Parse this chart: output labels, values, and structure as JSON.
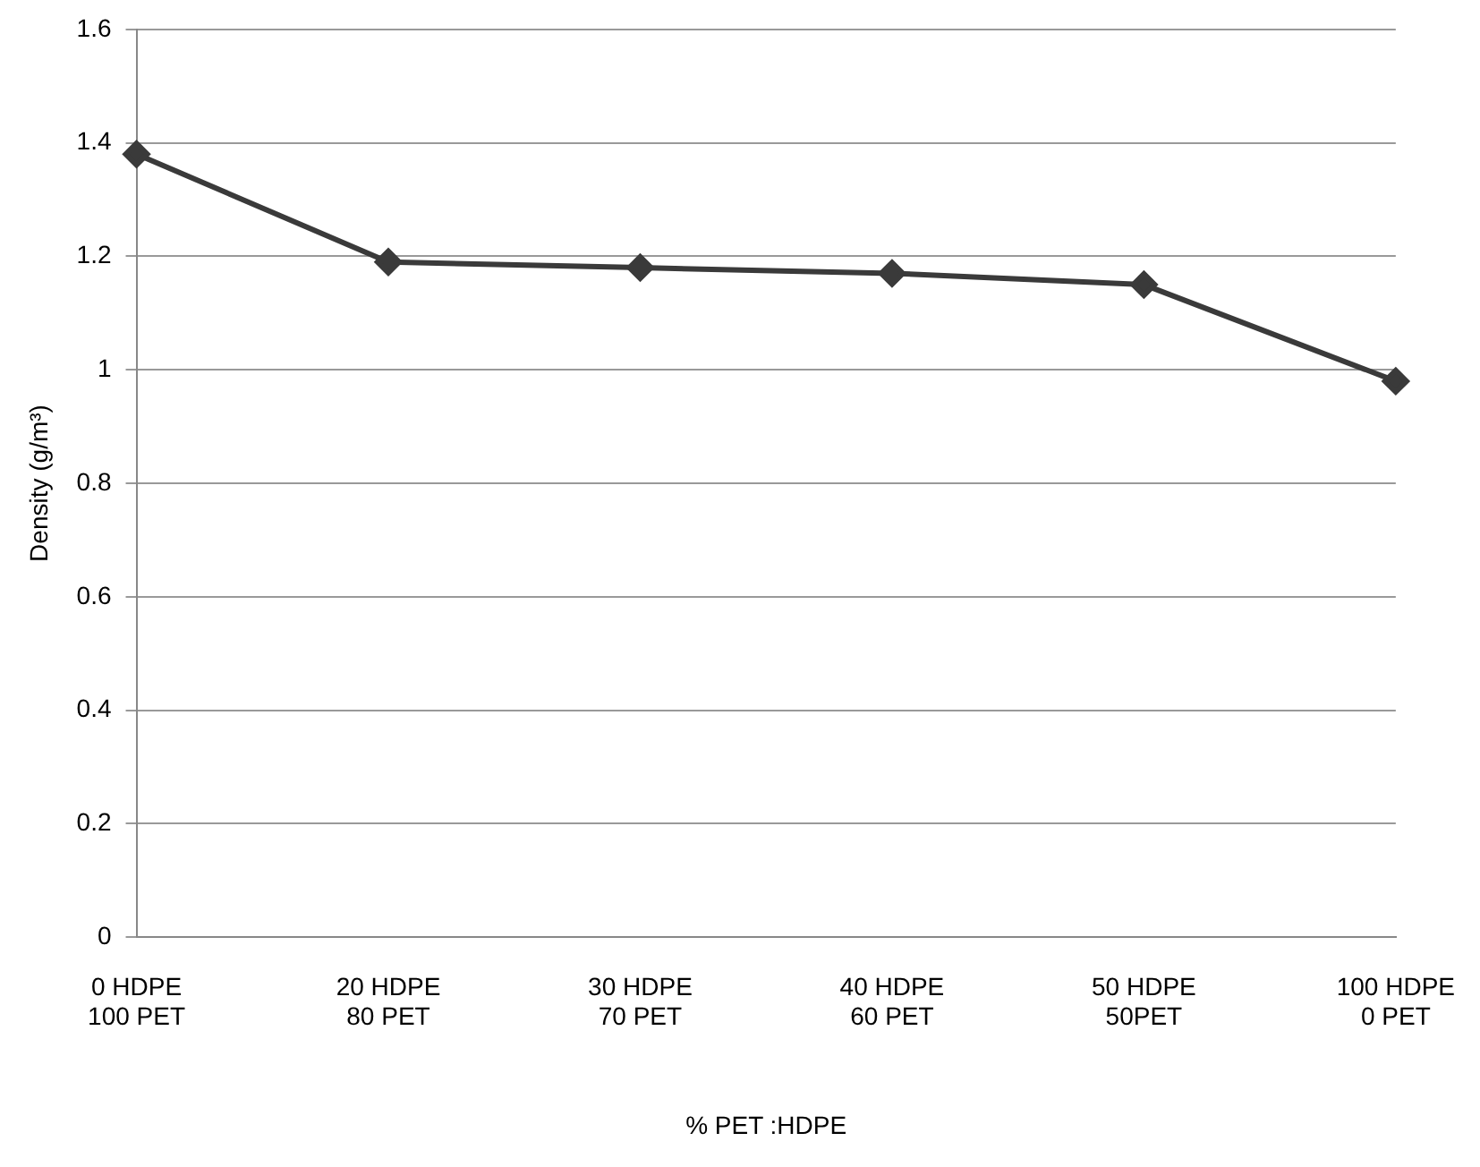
{
  "chart_data": {
    "type": "line",
    "xlabel": "% PET :HDPE",
    "ylabel": "Density (g/m³)",
    "categories": [
      "0 HDPE\n100 PET",
      "20 HDPE\n80 PET",
      "30 HDPE\n70 PET",
      "40 HDPE\n60 PET",
      "50 HDPE\n50PET",
      "100 HDPE\n0 PET"
    ],
    "series": [
      {
        "color": "#3a3a3a",
        "values": [
          1.38,
          1.19,
          1.18,
          1.17,
          1.15,
          0.98
        ]
      }
    ],
    "ylim": [
      0,
      1.6
    ],
    "yticks": [
      0,
      0.2,
      0.4,
      0.6,
      0.8,
      1,
      1.2,
      1.4,
      1.6
    ],
    "grid": "y",
    "marker": "diamond",
    "line_style": "solid"
  }
}
